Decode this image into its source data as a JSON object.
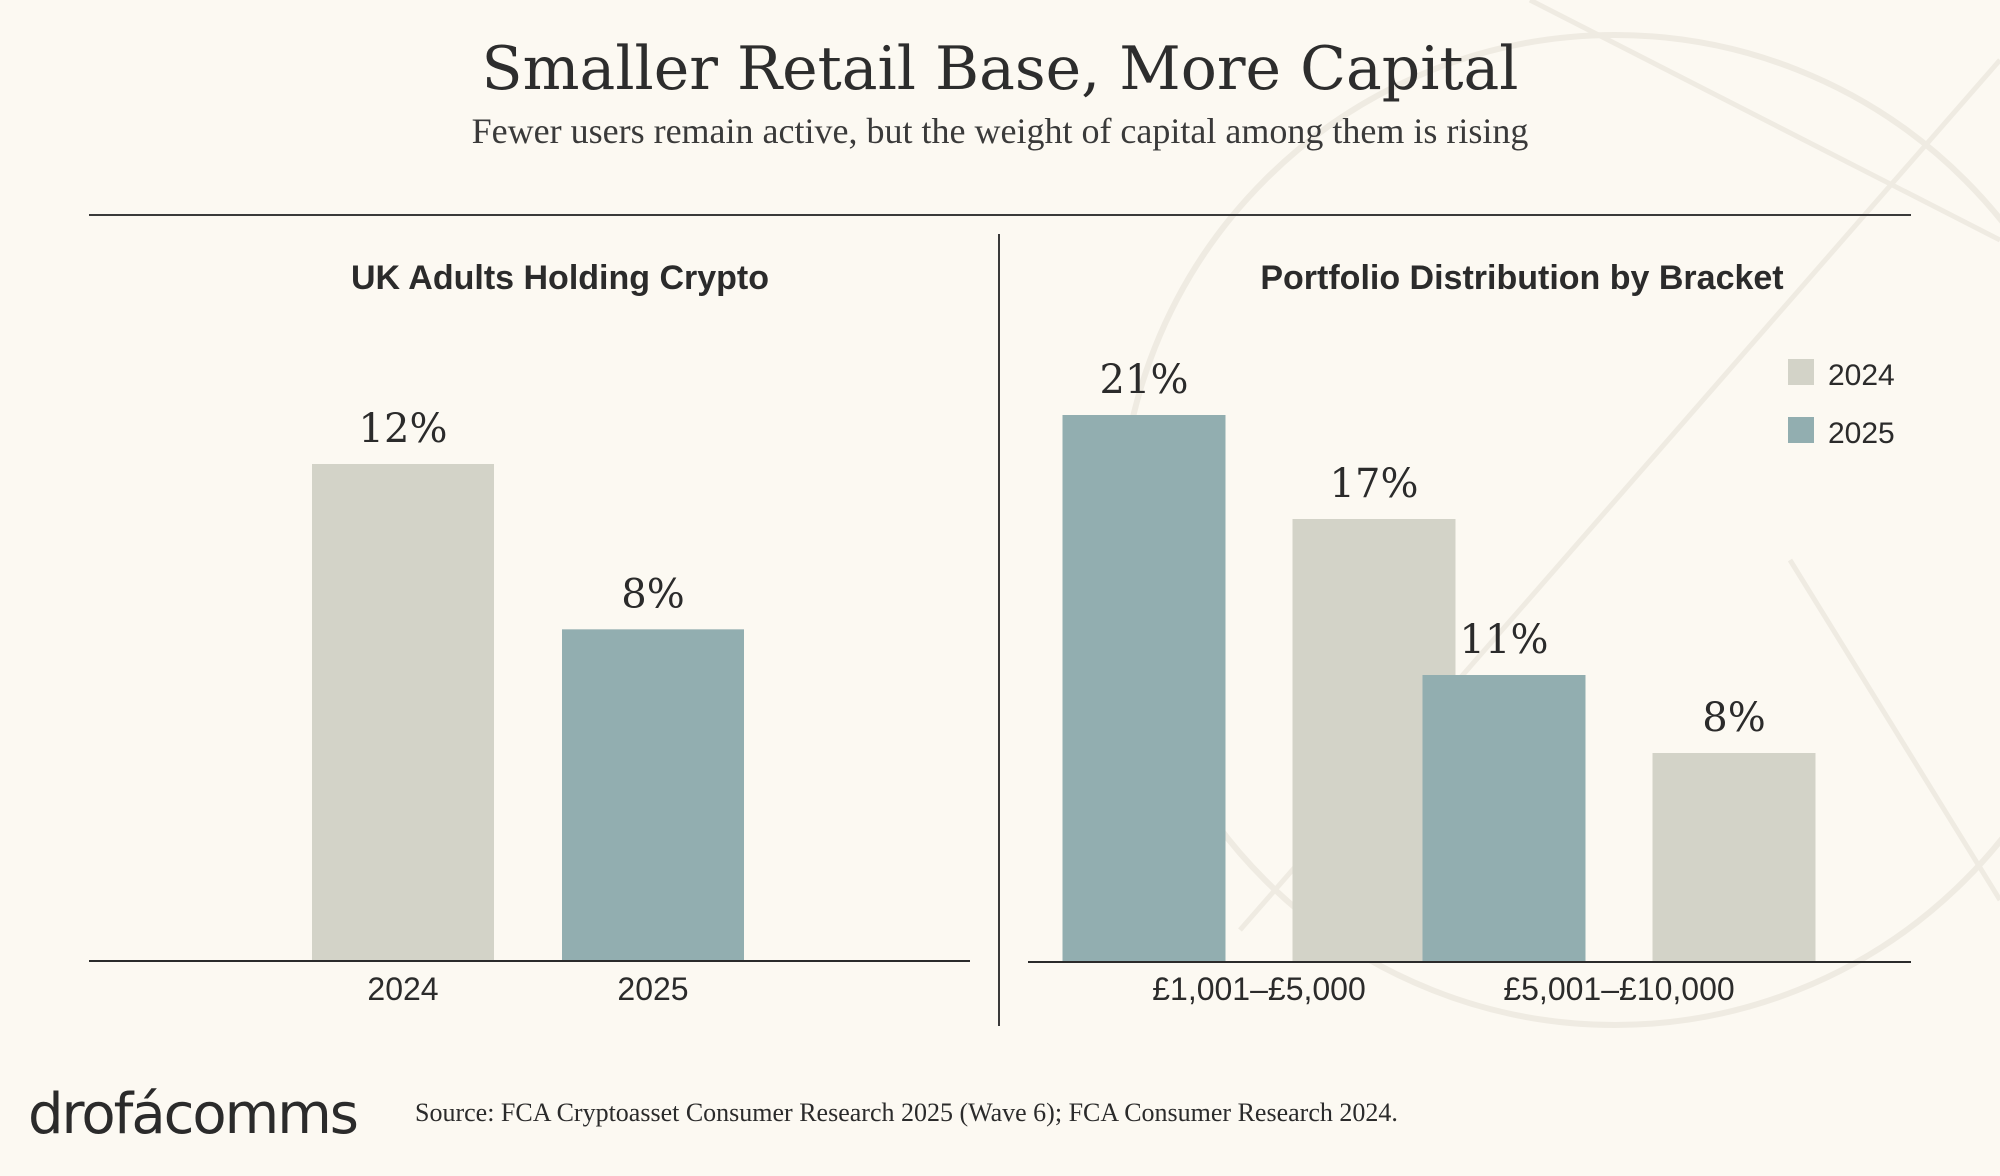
{
  "header": {
    "title": "Smaller Retail Base, More Capital",
    "subtitle": "Fewer users remain active, but the weight of capital among them is rising"
  },
  "colors": {
    "background": "#fcf9f2",
    "series_2024": "#d3d3c8",
    "series_2025": "#92aeb0",
    "text": "#2b2b2b",
    "rule": "#3a3a3a"
  },
  "chart_data": [
    {
      "type": "bar",
      "title": "UK Adults Holding Crypto",
      "categories": [
        "2024",
        "2025"
      ],
      "values": [
        12,
        8
      ],
      "value_labels": [
        "12%",
        "8%"
      ],
      "bar_colors": [
        "#d3d3c8",
        "#92aeb0"
      ],
      "ylim": [
        0,
        15
      ],
      "grid": false,
      "legend": "none"
    },
    {
      "type": "bar",
      "title": "Portfolio Distribution by Bracket",
      "categories": [
        "£1,001–£5,000",
        "£5,001–£10,000"
      ],
      "series": [
        {
          "name": "2025",
          "values": [
            21,
            11
          ],
          "value_labels": [
            "21%",
            "11%"
          ],
          "color": "#92aeb0"
        },
        {
          "name": "2024",
          "values": [
            17,
            8
          ],
          "value_labels": [
            "17%",
            "8%"
          ],
          "color": "#d3d3c8"
        }
      ],
      "legend_items": [
        {
          "name": "2024",
          "color": "#d3d3c8"
        },
        {
          "name": "2025",
          "color": "#92aeb0"
        }
      ],
      "ylim": [
        0,
        25
      ],
      "grid": false,
      "legend": "top-right"
    }
  ],
  "footer": {
    "logo": "drofácomms",
    "source": "Source: FCA Cryptoasset Consumer Research 2025 (Wave 6); FCA Consumer Research 2024."
  }
}
